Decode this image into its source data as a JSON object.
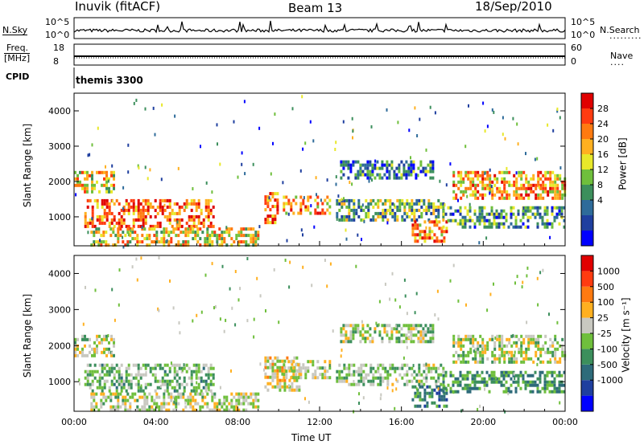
{
  "header": {
    "station": "Inuvik (fitACF)",
    "beam": "Beam 13",
    "date": "18/Sep/2010"
  },
  "noise_panel": {
    "left_label": "N.Sky",
    "right_label": "N.Search",
    "ticks": [
      "10^5",
      "10^0"
    ]
  },
  "freq_panel": {
    "left_label": "Freq.",
    "left_unit": "[MHz]",
    "left_ticks": [
      "18",
      "8"
    ],
    "right_label": "Nave",
    "right_ticks": [
      "60",
      "0"
    ]
  },
  "cpid": {
    "label": "CPID",
    "value": "themis 3300"
  },
  "chart_data": [
    {
      "type": "heatmap",
      "title": "",
      "xlabel": "",
      "ylabel": "Slant Range [km]",
      "x_range": [
        "00:00",
        "24:00"
      ],
      "ylim": [
        180,
        4500
      ],
      "yticks": [
        "1000",
        "2000",
        "3000",
        "4000"
      ],
      "colorbar": {
        "label": "Power [dB]",
        "ticks": [
          "28",
          "24",
          "20",
          "16",
          "12",
          "8",
          "4"
        ],
        "colors": [
          "#0000ff",
          "#1f3f9f",
          "#2e6b9a",
          "#3c8f5c",
          "#6fbf3c",
          "#e8e82a",
          "#ffb020",
          "#ff7a10",
          "#ff3b10",
          "#e00000"
        ],
        "range": [
          0,
          30
        ]
      },
      "regions": [
        {
          "t0": 0.0,
          "t1": 2.0,
          "r0": 1700,
          "r1": 2300,
          "power": 18
        },
        {
          "t0": 0.5,
          "t1": 6.8,
          "r0": 700,
          "r1": 1500,
          "power": 24
        },
        {
          "t0": 0.8,
          "t1": 9.0,
          "r0": 200,
          "r1": 700,
          "power": 18
        },
        {
          "t0": 9.3,
          "t1": 10.0,
          "r0": 800,
          "r1": 1700,
          "power": 24
        },
        {
          "t0": 10.2,
          "t1": 12.5,
          "r0": 1100,
          "r1": 1600,
          "power": 20
        },
        {
          "t0": 12.8,
          "t1": 18.0,
          "r0": 900,
          "r1": 1500,
          "power": 12
        },
        {
          "t0": 13.0,
          "t1": 17.5,
          "r0": 2100,
          "r1": 2600,
          "power": 8
        },
        {
          "t0": 16.5,
          "t1": 18.2,
          "r0": 300,
          "r1": 900,
          "power": 22
        },
        {
          "t0": 18.5,
          "t1": 24.0,
          "r0": 1500,
          "r1": 2300,
          "power": 20
        },
        {
          "t0": 18.0,
          "t1": 24.0,
          "r0": 700,
          "r1": 1300,
          "power": 10
        }
      ]
    },
    {
      "type": "heatmap",
      "title": "",
      "xlabel": "Time UT",
      "ylabel": "Slant Range [km]",
      "x_range": [
        "00:00",
        "24:00"
      ],
      "xticks": [
        "00:00",
        "04:00",
        "08:00",
        "12:00",
        "16:00",
        "20:00",
        "00:00"
      ],
      "ylim": [
        180,
        4500
      ],
      "yticks": [
        "1000",
        "2000",
        "3000",
        "4000"
      ],
      "colorbar": {
        "label": "Velocity [m s⁻¹]",
        "ticks": [
          "1000",
          "500",
          "100",
          "25",
          "-25",
          "-100",
          "-500",
          "-1000"
        ],
        "colors": [
          "#0000ff",
          "#1f3f9f",
          "#2e6b7a",
          "#3c8f5c",
          "#6fbf3c",
          "#c8c8c0",
          "#ffb020",
          "#ff7a10",
          "#ff3b10",
          "#e00000"
        ],
        "range": [
          -1000,
          1000
        ]
      },
      "regions": [
        {
          "t0": 0.0,
          "t1": 2.0,
          "r0": 1700,
          "r1": 2300,
          "velocity": 0
        },
        {
          "t0": 0.5,
          "t1": 6.8,
          "r0": 700,
          "r1": 1500,
          "velocity": -120
        },
        {
          "t0": 0.8,
          "t1": 9.0,
          "r0": 200,
          "r1": 700,
          "velocity": 60
        },
        {
          "t0": 9.3,
          "t1": 11.0,
          "r0": 800,
          "r1": 1700,
          "velocity": 150
        },
        {
          "t0": 10.2,
          "t1": 12.5,
          "r0": 1100,
          "r1": 1600,
          "velocity": 80
        },
        {
          "t0": 12.8,
          "t1": 18.0,
          "r0": 900,
          "r1": 1500,
          "velocity": -80
        },
        {
          "t0": 13.0,
          "t1": 17.5,
          "r0": 2100,
          "r1": 2600,
          "velocity": 0
        },
        {
          "t0": 16.5,
          "t1": 18.2,
          "r0": 300,
          "r1": 900,
          "velocity": -400
        },
        {
          "t0": 18.5,
          "t1": 24.0,
          "r0": 1500,
          "r1": 2300,
          "velocity": 0
        },
        {
          "t0": 18.0,
          "t1": 24.0,
          "r0": 700,
          "r1": 1300,
          "velocity": -300
        }
      ]
    }
  ]
}
